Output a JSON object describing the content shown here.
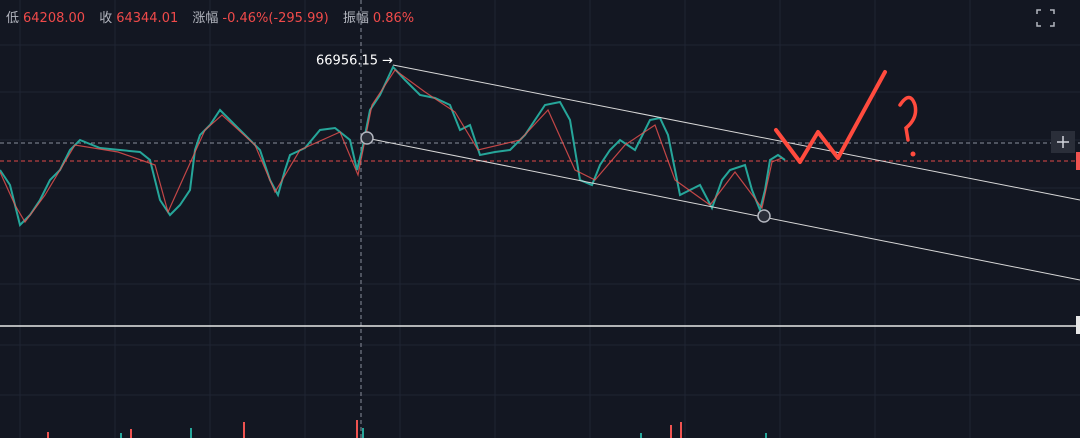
{
  "header": {
    "low_label": "低",
    "low": "64208.00",
    "close_label": "收",
    "close": "64344.01",
    "change_label": "涨幅",
    "change": "-0.46%(-295.99)",
    "amplitude_label": "振幅",
    "amplitude": "0.86%"
  },
  "annotation": {
    "high": "66956.15 →"
  }
}
